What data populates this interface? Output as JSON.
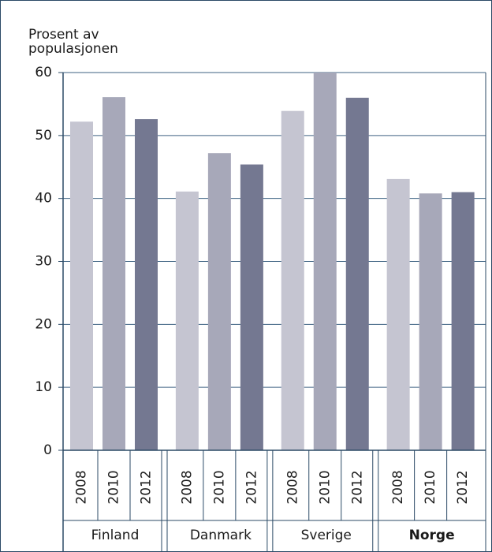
{
  "chart_data": {
    "type": "bar",
    "y_label_lines": [
      "Prosent av",
      "populasjonen"
    ],
    "categories": [
      "Finland",
      "Danmark",
      "Sverige",
      "Norge"
    ],
    "highlight_category": "Norge",
    "series": [
      {
        "name": "2008",
        "color": "#c5c5d1",
        "values": [
          52.2,
          41.1,
          53.9,
          43.1
        ]
      },
      {
        "name": "2010",
        "color": "#a7a8b9",
        "values": [
          56.1,
          47.2,
          60,
          40.8
        ]
      },
      {
        "name": "2012",
        "color": "#747891",
        "values": [
          52.6,
          45.4,
          56,
          41
        ]
      }
    ],
    "ylim": [
      0,
      60
    ],
    "yticks": [
      0,
      10,
      20,
      30,
      40,
      50,
      60
    ],
    "grid": true
  }
}
